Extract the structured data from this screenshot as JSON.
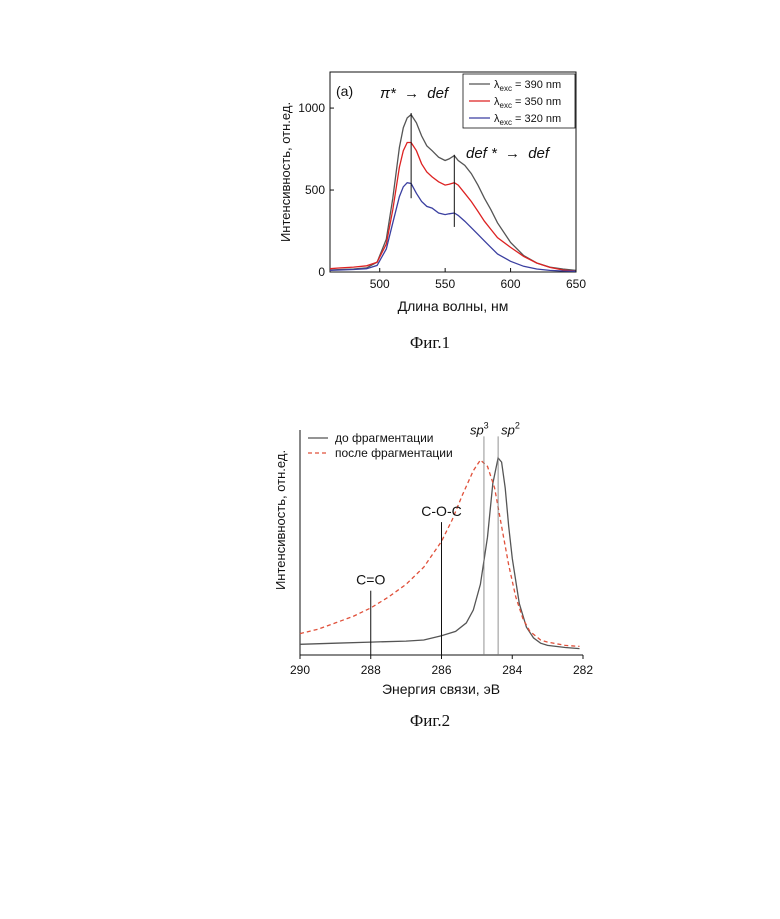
{
  "figures": [
    {
      "caption": "Фиг.1",
      "chart_data": {
        "type": "line",
        "panel_label": "(a)",
        "xlabel": "Длина волны, нм",
        "ylabel": "Интенсивность, отн.ед.",
        "xlim": [
          462,
          650
        ],
        "ylim": [
          0,
          1220
        ],
        "xticks": [
          500,
          550,
          600,
          650
        ],
        "yticks": [
          0,
          500,
          1000
        ],
        "legend_position": "top-right",
        "series": [
          {
            "name_prefix": "λ",
            "name_sub": "exc",
            "name_rest": " = 390 nm",
            "color": "#555555",
            "x": [
              462,
              470,
              480,
              490,
              498,
              505,
              510,
              515,
              518,
              521,
              524,
              528,
              532,
              536,
              540,
              545,
              550,
              553,
              557,
              560,
              565,
              570,
              575,
              580,
              585,
              590,
              600,
              610,
              620,
              630,
              640,
              650
            ],
            "y": [
              12,
              15,
              18,
              25,
              60,
              200,
              450,
              760,
              880,
              940,
              960,
              910,
              830,
              770,
              740,
              700,
              680,
              690,
              710,
              680,
              650,
              600,
              530,
              450,
              380,
              300,
              180,
              100,
              55,
              30,
              18,
              10
            ]
          },
          {
            "name_prefix": "λ",
            "name_sub": "exc",
            "name_rest": " = 350 nm",
            "color": "#dd2222",
            "x": [
              462,
              470,
              480,
              490,
              498,
              505,
              510,
              515,
              518,
              521,
              524,
              528,
              532,
              536,
              540,
              545,
              550,
              553,
              557,
              560,
              565,
              570,
              575,
              580,
              585,
              590,
              600,
              610,
              620,
              630,
              640,
              650
            ],
            "y": [
              20,
              25,
              30,
              38,
              60,
              170,
              380,
              640,
              740,
              790,
              790,
              740,
              660,
              610,
              580,
              550,
              530,
              535,
              545,
              530,
              480,
              430,
              370,
              310,
              260,
              210,
              150,
              95,
              55,
              28,
              12,
              5
            ]
          },
          {
            "name_prefix": "λ",
            "name_sub": "exc",
            "name_rest": " = 320 nm",
            "color": "#3a3fa0",
            "x": [
              462,
              470,
              480,
              490,
              498,
              505,
              510,
              515,
              518,
              521,
              524,
              528,
              532,
              536,
              540,
              545,
              550,
              553,
              557,
              560,
              565,
              570,
              575,
              580,
              585,
              590,
              600,
              610,
              620,
              630,
              640,
              650
            ],
            "y": [
              10,
              12,
              15,
              20,
              40,
              140,
              300,
              460,
              520,
              545,
              540,
              480,
              430,
              400,
              390,
              360,
              350,
              355,
              360,
              345,
              310,
              270,
              230,
              190,
              150,
              110,
              65,
              35,
              18,
              10,
              6,
              4
            ]
          }
        ],
        "markers": [
          {
            "x": 524,
            "y_top": 970,
            "y_bottom": 450,
            "label_type": "pi"
          },
          {
            "x": 557,
            "y_top": 715,
            "y_bottom": 275,
            "label_type": "def"
          }
        ],
        "annotations": {
          "pi_star": "π*",
          "arrow": "→",
          "def": "def",
          "def_star": "def *"
        }
      }
    },
    {
      "caption": "Фиг.2",
      "chart_data": {
        "type": "line",
        "xlabel": "Энергия связи, эВ",
        "ylabel": "Интенсивность, отн.ед.",
        "xlim": [
          290,
          282
        ],
        "ylim": [
          0,
          1.05
        ],
        "xticks": [
          290,
          288,
          286,
          284,
          282
        ],
        "legend_position": "top-left",
        "series": [
          {
            "name": "до фрагментации",
            "color": "#555555",
            "dash": "solid",
            "x": [
              290,
              289,
              288,
              287,
              286.5,
              286,
              285.6,
              285.3,
              285.1,
              284.9,
              284.7,
              284.55,
              284.4,
              284.3,
              284.2,
              284.1,
              284.0,
              283.8,
              283.6,
              283.4,
              283.2,
              283.0,
              282.5,
              282.1
            ],
            "y": [
              0.05,
              0.055,
              0.06,
              0.065,
              0.07,
              0.09,
              0.11,
              0.15,
              0.21,
              0.33,
              0.55,
              0.8,
              0.92,
              0.9,
              0.78,
              0.6,
              0.45,
              0.24,
              0.13,
              0.08,
              0.055,
              0.045,
              0.035,
              0.03
            ]
          },
          {
            "name": "после фрагментации",
            "color": "#e0503a",
            "dash": "dashed",
            "x": [
              290,
              289.5,
              289,
              288.5,
              288,
              287.5,
              287,
              286.5,
              286,
              285.7,
              285.4,
              285.1,
              284.9,
              284.7,
              284.5,
              284.3,
              284.1,
              283.9,
              283.7,
              283.5,
              283.2,
              283.0,
              282.5,
              282.1
            ],
            "y": [
              0.1,
              0.12,
              0.15,
              0.18,
              0.22,
              0.27,
              0.33,
              0.41,
              0.53,
              0.63,
              0.75,
              0.86,
              0.91,
              0.88,
              0.78,
              0.6,
              0.42,
              0.27,
              0.17,
              0.11,
              0.07,
              0.06,
              0.045,
              0.04
            ]
          }
        ],
        "markers": [
          {
            "x": 288.0,
            "y_top": 0.3,
            "label": "C=O"
          },
          {
            "x": 286.0,
            "y_top": 0.62,
            "label": "C-O-C"
          },
          {
            "x": 284.8,
            "y_top": 1.02,
            "label_base": "sp",
            "label_sup": "3"
          },
          {
            "x": 284.4,
            "y_top": 1.02,
            "label_base": "sp",
            "label_sup": "2"
          }
        ]
      }
    }
  ]
}
